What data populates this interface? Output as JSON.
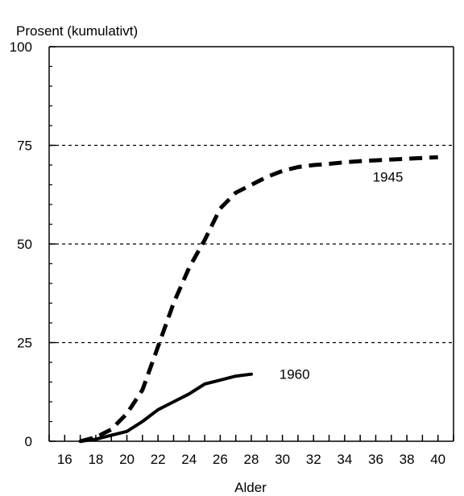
{
  "chart_data": {
    "type": "line",
    "title": "",
    "ylabel": "Prosent (kumulativt)",
    "xlabel": "Alder",
    "xlim": [
      15,
      41
    ],
    "ylim": [
      0,
      100
    ],
    "x_ticks": [
      16,
      18,
      20,
      22,
      24,
      26,
      28,
      30,
      32,
      34,
      36,
      38,
      40
    ],
    "y_ticks": [
      0,
      25,
      50,
      75,
      100
    ],
    "gridlines_y": [
      25,
      50,
      75
    ],
    "series": [
      {
        "name": "1945",
        "style": "dashed",
        "label_at": [
          35.8,
          67
        ],
        "x": [
          17,
          18,
          19,
          20,
          21,
          22,
          23,
          24,
          25,
          26,
          27,
          28,
          29,
          30,
          31,
          32,
          33,
          34,
          35,
          36,
          37,
          38,
          39,
          40
        ],
        "y": [
          0,
          1,
          3,
          7,
          13,
          24,
          35,
          44,
          51,
          59,
          63,
          65,
          67,
          68.5,
          69.5,
          70,
          70.3,
          70.7,
          71,
          71.2,
          71.4,
          71.6,
          71.8,
          72
        ]
      },
      {
        "name": "1960",
        "style": "solid",
        "label_at": [
          29.8,
          17
        ],
        "x": [
          17,
          18,
          19,
          20,
          21,
          22,
          23,
          24,
          25,
          26,
          27,
          28
        ],
        "y": [
          0,
          0.5,
          1.5,
          2.5,
          5,
          8,
          10,
          12,
          14.5,
          15.5,
          16.5,
          17
        ]
      }
    ]
  }
}
